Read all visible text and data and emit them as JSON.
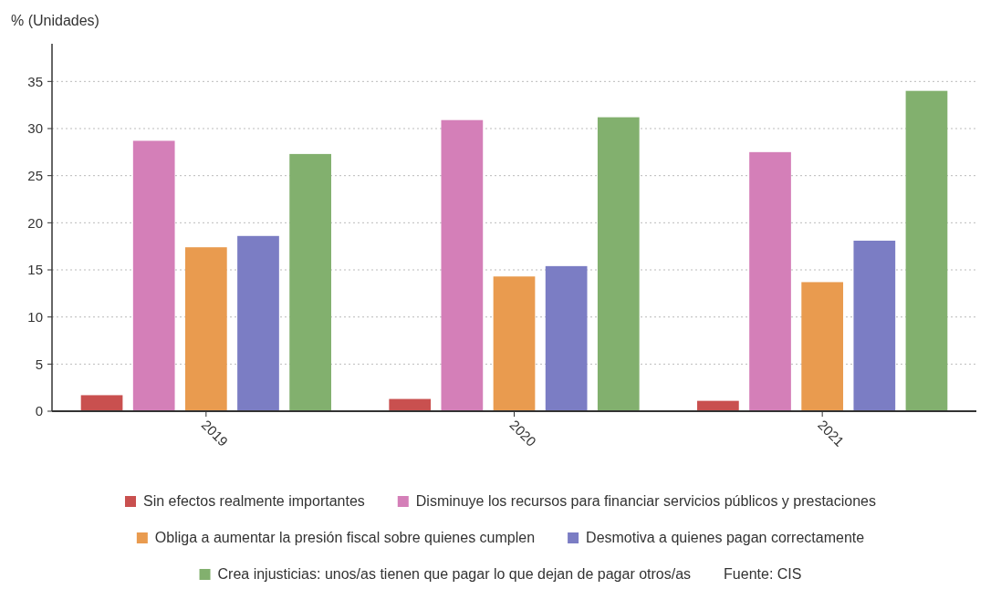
{
  "chart_data": {
    "type": "bar",
    "ylabel": "% (Unidades)",
    "categories": [
      "2019",
      "2020",
      "2021"
    ],
    "series": [
      {
        "name": "Sin efectos realmente importantes",
        "color": "#c9504f",
        "values": [
          1.7,
          1.3,
          1.1
        ]
      },
      {
        "name": "Disminuye los recursos para financiar servicios públicos y prestaciones",
        "color": "#d47fb8",
        "values": [
          28.7,
          30.9,
          27.5
        ]
      },
      {
        "name": "Obliga a aumentar la presión fiscal sobre quienes cumplen",
        "color": "#e99b4f",
        "values": [
          17.4,
          14.3,
          13.7
        ]
      },
      {
        "name": "Desmotiva a quienes pagan correctamente",
        "color": "#7b7dc4",
        "values": [
          18.6,
          15.4,
          18.1
        ]
      },
      {
        "name": "Crea injusticias: unos/as tienen que pagar lo que dejan de pagar otros/as",
        "color": "#82b06e",
        "values": [
          27.3,
          31.2,
          34.0
        ]
      }
    ],
    "ylim": [
      0,
      39
    ],
    "yticks": [
      0,
      5,
      10,
      15,
      20,
      25,
      30,
      35
    ],
    "grid": "y",
    "legend": "bottom",
    "annotations": [
      "Fuente: CIS"
    ]
  }
}
